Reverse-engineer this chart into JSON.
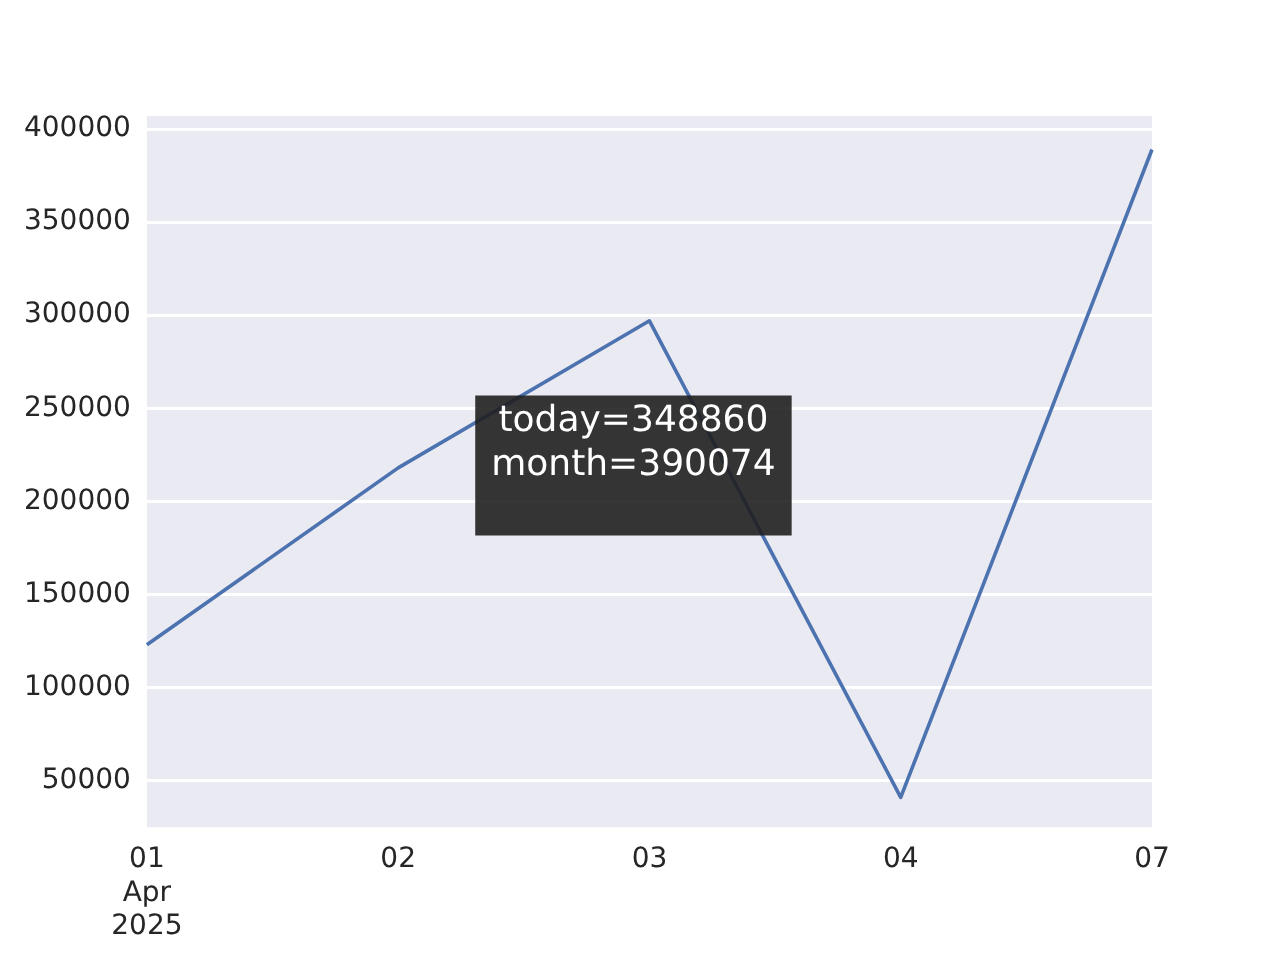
{
  "chart_data": {
    "type": "line",
    "categories": [
      "01\nApr\n2025",
      "02",
      "03",
      "04",
      "07"
    ],
    "series": [
      {
        "color": "#4c72b0",
        "values": [
          123000,
          218000,
          297000,
          41000,
          389000
        ]
      }
    ],
    "ylim": [
      25000,
      407000
    ],
    "yticks": [
      50000,
      100000,
      150000,
      200000,
      250000,
      300000,
      350000,
      400000
    ],
    "grid": "y",
    "legend": false,
    "annotations": [
      "today=348860\nmonth=390074"
    ]
  }
}
